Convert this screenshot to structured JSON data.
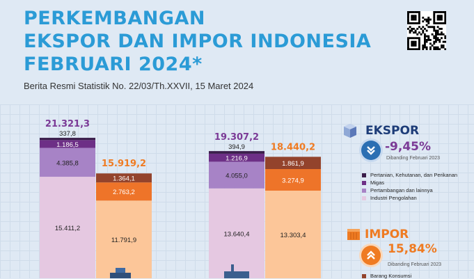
{
  "header": {
    "title_line1": "PERKEMBANGAN",
    "title_line2": "EKSPOR DAN IMPOR INDONESIA",
    "title_line3": "FEBRUARI 2024*",
    "subtitle": "Berita Resmi Statistik No. 22/03/Th.XXVII, 15 Maret 2024"
  },
  "ekspor_panel": {
    "title": "EKSPOR",
    "change": "-9,45%",
    "comparison": "Dibanding Februari 2023",
    "legend": [
      {
        "label": "Pertanian, Kehutanan, dan Perikanan",
        "color": "#3a1d4a"
      },
      {
        "label": "Migas",
        "color": "#6d2f86"
      },
      {
        "label": "Pertambangan dan lainnya",
        "color": "#a783c6"
      },
      {
        "label": "Industri Pengolahan",
        "color": "#e5c8e1"
      }
    ]
  },
  "impor_panel": {
    "title": "IMPOR",
    "change": "15,84%",
    "comparison": "Dibanding Februari 2023",
    "legend_partial": "Barang Konsumsi"
  },
  "colors": {
    "title": "#2b9bd6",
    "ekspor_accent": "#7b3a96",
    "impor_accent": "#ef7b22",
    "ekspor_badge": "#2b6fb3"
  },
  "chart_data": {
    "type": "bar",
    "stacked": true,
    "groups": [
      {
        "kind": "ekspor",
        "total": "21.321,3",
        "segments": [
          {
            "value": 15411.2,
            "label": "15.411,2",
            "color": "#e5c8e1"
          },
          {
            "value": 4385.8,
            "label": "4.385,8",
            "color": "#a783c6"
          },
          {
            "value": 1186.5,
            "label": "1.186,5",
            "color": "#6d2f86"
          },
          {
            "value": 337.8,
            "label": "337,8",
            "color": "#3a1d4a"
          }
        ]
      },
      {
        "kind": "impor",
        "total": "15.919,2",
        "segments": [
          {
            "value": 11791.9,
            "label": "11.791,9",
            "color": "#fcc699"
          },
          {
            "value": 2763.2,
            "label": "2.763,2",
            "color": "#ee7429"
          },
          {
            "value": 1364.1,
            "label": "1.364,1",
            "color": "#93432c"
          }
        ]
      },
      {
        "kind": "ekspor",
        "total": "19.307,2",
        "segments": [
          {
            "value": 13640.4,
            "label": "13.640,4",
            "color": "#e5c8e1"
          },
          {
            "value": 4055.0,
            "label": "4.055,0",
            "color": "#a783c6"
          },
          {
            "value": 1216.9,
            "label": "1.216,9",
            "color": "#6d2f86"
          },
          {
            "value": 394.9,
            "label": "394,9",
            "color": "#3a1d4a"
          }
        ]
      },
      {
        "kind": "impor",
        "total": "18.440,2",
        "segments": [
          {
            "value": 13303.4,
            "label": "13.303,4",
            "color": "#fcc699"
          },
          {
            "value": 3274.9,
            "label": "3.274,9",
            "color": "#ee7429"
          },
          {
            "value": 1861.9,
            "label": "1.861,9",
            "color": "#93432c"
          }
        ]
      }
    ]
  }
}
